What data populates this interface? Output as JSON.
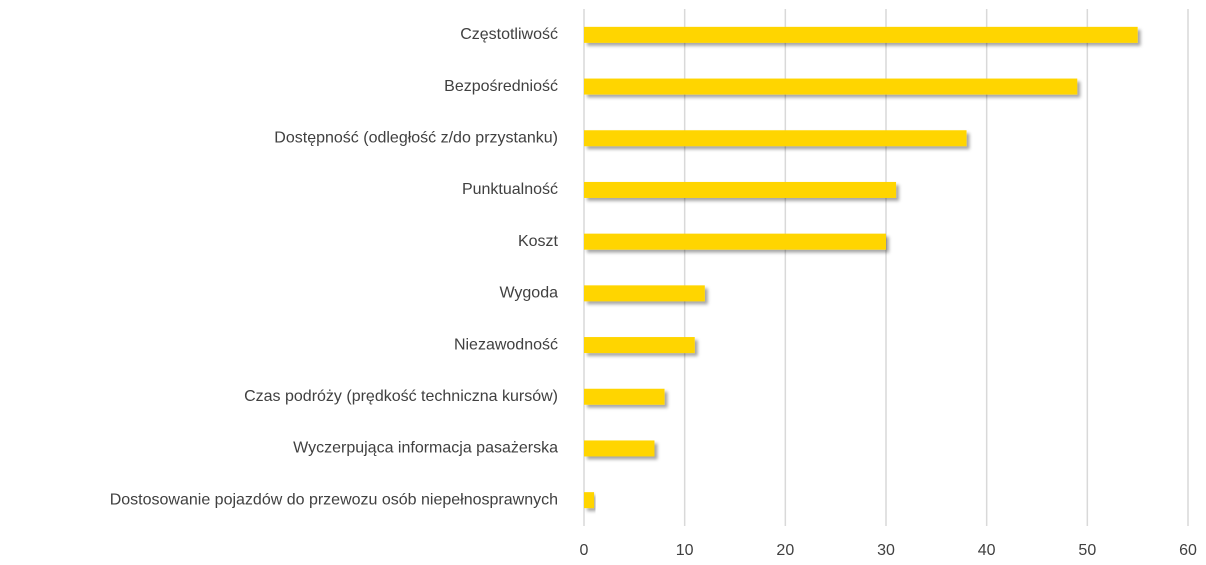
{
  "chart_data": {
    "type": "bar",
    "orientation": "horizontal",
    "categories": [
      "Częstotliwość",
      "Bezpośredniość",
      "Dostępność (odległość z/do przystanku)",
      "Punktualność",
      "Koszt",
      "Wygoda",
      "Niezawodność",
      "Czas podróży (prędkość techniczna kursów)",
      "Wyczerpująca informacja pasażerska",
      "Dostosowanie pojazdów do przewozu osób niepełnosprawnych"
    ],
    "values": [
      55,
      49,
      38,
      31,
      30,
      12,
      11,
      8,
      7,
      1
    ],
    "color": "#ffd500",
    "xlim": [
      0,
      60
    ],
    "xticks": [
      0,
      10,
      20,
      30,
      40,
      50,
      60
    ],
    "grid": true
  }
}
